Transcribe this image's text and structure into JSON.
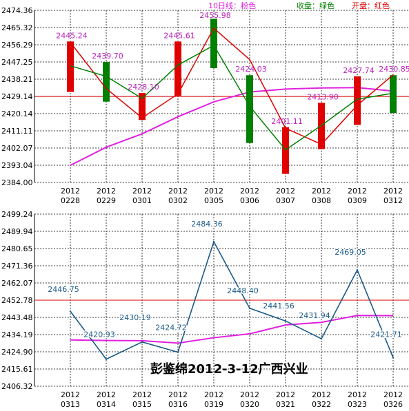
{
  "chart_data": [
    {
      "type": "candlestick",
      "legend": {
        "ma_label": "10日线：粉色",
        "close_label": "收盘：绿色",
        "open_label": "开盘：红色"
      },
      "colors": {
        "ma": "#e020e0",
        "close": "#008000",
        "open": "#e00000",
        "ref": "#e00000",
        "ylabel": "#000000",
        "value_label": "#c020c0"
      },
      "ylim": [
        2384.0,
        2474.36
      ],
      "y_ticks": [
        "2474.36",
        "2465.32",
        "2456.29",
        "2447.25",
        "2438.21",
        "2429.14",
        "2420.14",
        "2411.11",
        "2402.07",
        "2393.04",
        "2384.00"
      ],
      "reference_line": 2429.14,
      "dates": [
        [
          "2012",
          "0228"
        ],
        [
          "2012",
          "0229"
        ],
        [
          "2012",
          "0301"
        ],
        [
          "2012",
          "0302"
        ],
        [
          "2012",
          "0305"
        ],
        [
          "2012",
          "0306"
        ],
        [
          "2012",
          "0307"
        ],
        [
          "2012",
          "0308"
        ],
        [
          "2012",
          "0309"
        ],
        [
          "2012",
          "0312"
        ]
      ],
      "open": [
        2457.5,
        2433.3,
        2417.9,
        2430.5,
        2465.0,
        2448.5,
        2412.5,
        2404.0,
        2424.5,
        2440.5
      ],
      "close": [
        2445.24,
        2439.7,
        2428.1,
        2445.61,
        2455.98,
        2424.03,
        2401.11,
        2413.9,
        2427.74,
        2430.85
      ],
      "body_low": [
        2431.5,
        2426.4,
        2416.8,
        2429.5,
        2444.0,
        2404.7,
        2388.5,
        2401.5,
        2414.2,
        2420.5
      ],
      "body_high": [
        2458.0,
        2447.2,
        2431.0,
        2458.0,
        2470.0,
        2440.3,
        2413.0,
        2425.8,
        2439.7,
        2440.3
      ],
      "candle_colors": [
        "#e00000",
        "#008000",
        "#e00000",
        "#e00000",
        "#008000",
        "#008000",
        "#e00000",
        "#e00000",
        "#e00000",
        "#008000"
      ],
      "ma10": [
        2393.0,
        2402.5,
        2409.5,
        2418.5,
        2426.3,
        2431.5,
        2433.0,
        2433.6,
        2433.8,
        2432.0
      ],
      "value_labels": [
        "2445.24",
        "2439.70",
        "2428.10",
        "2445.61",
        "2455.98",
        "2424.03",
        "2401.11",
        "2413.90",
        "2427.74",
        "2430.85"
      ]
    },
    {
      "type": "line",
      "ylim": [
        2406.32,
        2499.24
      ],
      "y_ticks": [
        "2499.24",
        "2489.94",
        "2480.65",
        "2471.36",
        "2462.07",
        "2452.78",
        "2443.48",
        "2434.19",
        "2424.90",
        "2415.61",
        "2406.32"
      ],
      "reference_line": 2452.78,
      "colors": {
        "line": "#1a5a8a",
        "ma": "#e020e0",
        "ref": "#e00000",
        "value_label": "#1a5a8a",
        "watermark": "#000000"
      },
      "dates": [
        [
          "2012",
          "0313"
        ],
        [
          "2012",
          "0314"
        ],
        [
          "2012",
          "0315"
        ],
        [
          "2012",
          "0316"
        ],
        [
          "2012",
          "0319"
        ],
        [
          "2012",
          "0320"
        ],
        [
          "2012",
          "0321"
        ],
        [
          "2012",
          "0322"
        ],
        [
          "2012",
          "0323"
        ],
        [
          "2012",
          "0326"
        ]
      ],
      "values": [
        2446.75,
        2420.93,
        2430.19,
        2424.72,
        2484.36,
        2448.4,
        2441.56,
        2431.94,
        2469.05,
        2421.71
      ],
      "ma": [
        2431.3,
        2431.0,
        2430.9,
        2429.6,
        2432.5,
        2434.6,
        2439.4,
        2440.8,
        2444.5,
        2444.4
      ],
      "value_labels": [
        "2446.75",
        "2420.93",
        "2430.19",
        "2424.72",
        "2484.36",
        "2448.40",
        "2441.56",
        "2431.94",
        "2469.05",
        "2421.71"
      ],
      "watermark": "彭鉴绵2012-3-12广西兴业"
    }
  ]
}
